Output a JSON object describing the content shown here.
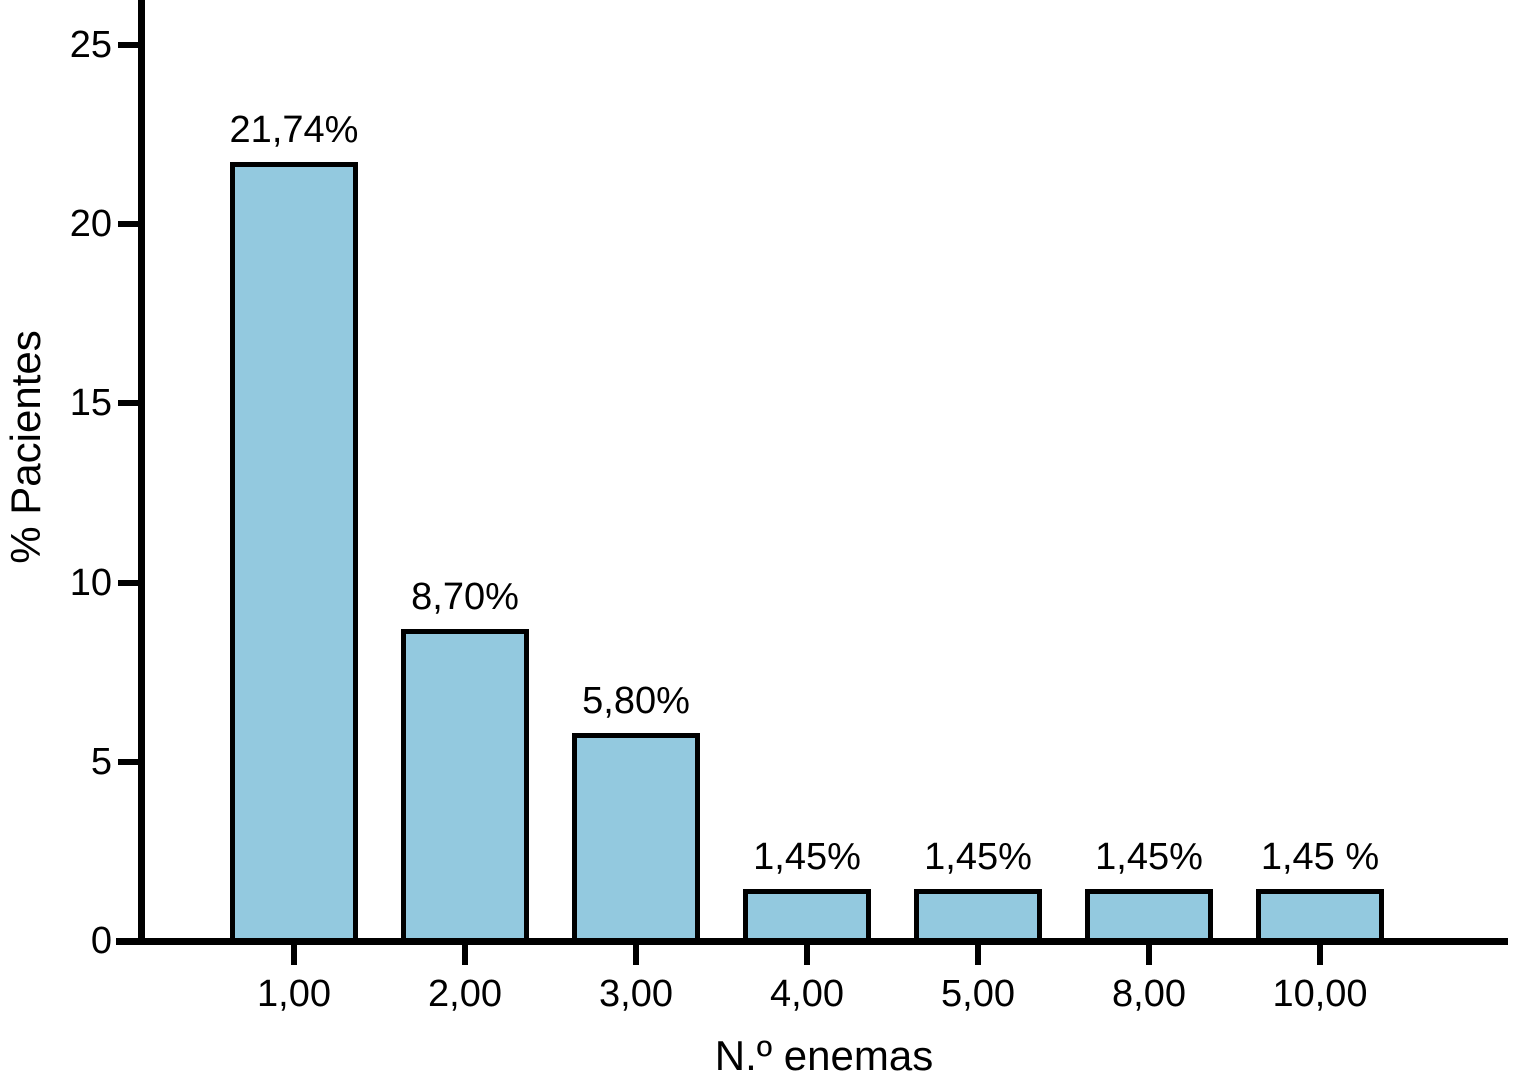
{
  "chart_data": {
    "type": "bar",
    "title": "",
    "xlabel": "N.º enemas",
    "ylabel": "% Pacientes",
    "categories": [
      "1,00",
      "2,00",
      "3,00",
      "4,00",
      "5,00",
      "8,00",
      "10,00"
    ],
    "values": [
      21.74,
      8.7,
      5.8,
      1.45,
      1.45,
      1.45,
      1.45
    ],
    "bar_labels": [
      "21,74%",
      "8,70%",
      "5,80%",
      "1,45%",
      "1,45%",
      "1,45%",
      "1,45 %"
    ],
    "yticks": [
      {
        "value": 0,
        "label": "0"
      },
      {
        "value": 5,
        "label": "5"
      },
      {
        "value": 10,
        "label": "10"
      },
      {
        "value": 15,
        "label": "15"
      },
      {
        "value": 20,
        "label": "20"
      },
      {
        "value": 25,
        "label": "25"
      }
    ],
    "ylim": [
      0,
      26.3
    ],
    "grid": false,
    "legend": null,
    "colors": {
      "bar_fill": "#93C9DF",
      "bar_border": "#000000",
      "axis": "#000000",
      "text": "#000000",
      "background": "#FFFFFF"
    }
  }
}
